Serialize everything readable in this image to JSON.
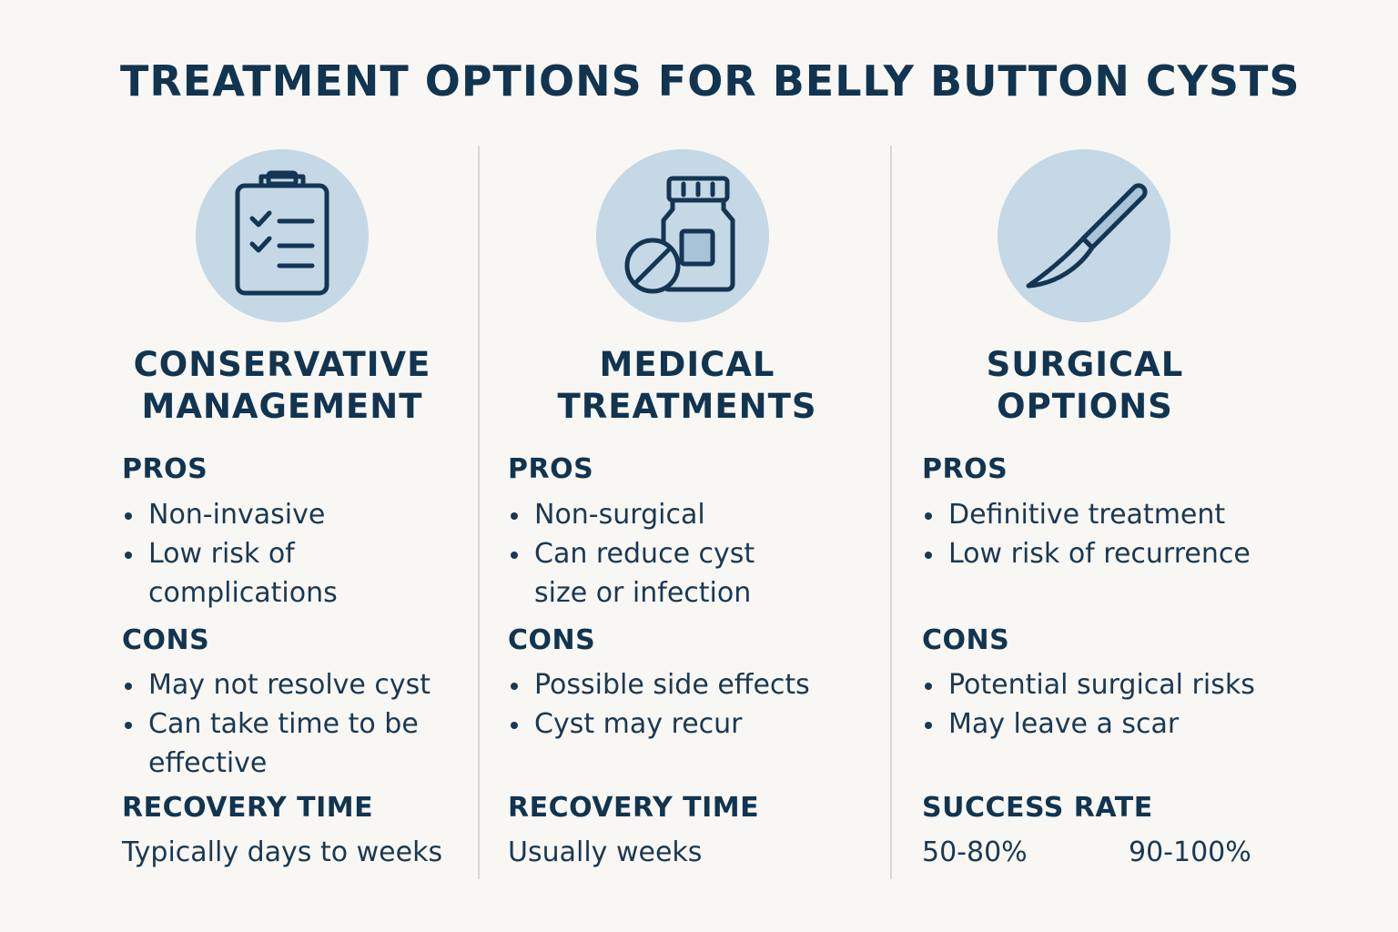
{
  "title": "TREATMENT OPTIONS FOR BELLY BUTTON CYSTS",
  "colors": {
    "accent": "#c5d8e5",
    "text": "#113450",
    "background": "#f8f7f4"
  },
  "columns": [
    {
      "icon": "clipboard-checklist-icon",
      "title_line1": "CONSERVATIVE",
      "title_line2": "MANAGEMENT",
      "pros_label": "PROS",
      "pros": [
        "Non-invasive",
        "Low risk of complications"
      ],
      "cons_label": "CONS",
      "cons": [
        "May not resolve cyst",
        "Can take time to be effective"
      ],
      "footer_label": "RECOVERY TIME",
      "footer_value": "Typically days to weeks"
    },
    {
      "icon": "medicine-bottle-pill-icon",
      "title_line1": "MEDICAL",
      "title_line2": "TREATMENTS",
      "pros_label": "PROS",
      "pros": [
        "Non-surgical",
        "Can reduce cyst size or infection"
      ],
      "cons_label": "CONS",
      "cons": [
        "Possible side effects",
        "Cyst may recur"
      ],
      "footer_label": "RECOVERY TIME",
      "footer_value": "Usually weeks"
    },
    {
      "icon": "scalpel-icon",
      "title_line1": "SURGICAL",
      "title_line2": "OPTIONS",
      "pros_label": "PROS",
      "pros": [
        "Definitive treatment",
        "Low risk of recurrence"
      ],
      "cons_label": "CONS",
      "cons": [
        "Potential surgical risks",
        "May leave a scar"
      ],
      "footer_label": "SUCCESS RATE",
      "footer_value_1": "50-80%",
      "footer_value_2": "90-100%"
    }
  ]
}
